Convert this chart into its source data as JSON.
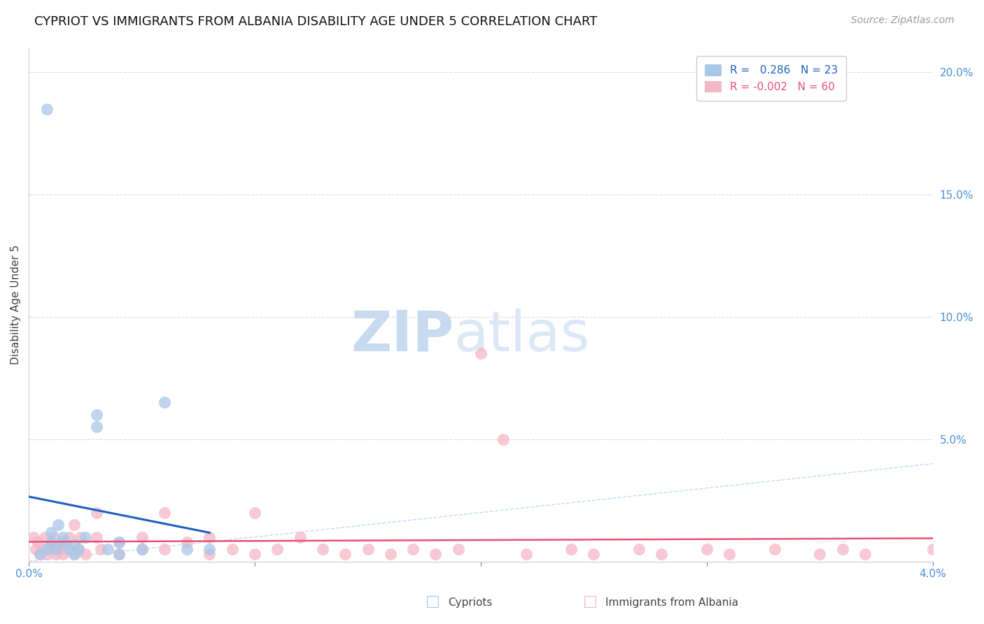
{
  "title": "CYPRIOT VS IMMIGRANTS FROM ALBANIA DISABILITY AGE UNDER 5 CORRELATION CHART",
  "source": "Source: ZipAtlas.com",
  "xlabel_label": "Cypriots",
  "xlabel2_label": "Immigrants from Albania",
  "ylabel": "Disability Age Under 5",
  "cypriot_R": 0.286,
  "cypriot_N": 23,
  "albania_R": -0.002,
  "albania_N": 60,
  "xlim": [
    0.0,
    0.04
  ],
  "ylim": [
    0.0,
    0.21
  ],
  "x_ticks": [
    0.0,
    0.01,
    0.02,
    0.03,
    0.04
  ],
  "x_tick_labels": [
    "0.0%",
    "",
    "",
    "",
    "4.0%"
  ],
  "y_ticks": [
    0.05,
    0.1,
    0.15,
    0.2
  ],
  "y_tick_labels": [
    "5.0%",
    "10.0%",
    "15.0%",
    "20.0%"
  ],
  "cypriot_color": "#a8c8e8",
  "albania_color": "#f5b8c8",
  "cypriot_line_color": "#2060c0",
  "albania_line_color": "#e8507a",
  "diagonal_color": "#b8d0f0",
  "grid_color": "#cccccc",
  "watermark_zip_color": "#c8daf0",
  "watermark_atlas_color": "#dce8f5",
  "cypriot_x": [
    0.0005,
    0.0008,
    0.001,
    0.001,
    0.0012,
    0.0013,
    0.0015,
    0.0015,
    0.0018,
    0.002,
    0.002,
    0.0022,
    0.0025,
    0.003,
    0.003,
    0.0035,
    0.004,
    0.004,
    0.005,
    0.006,
    0.007,
    0.008,
    0.0008
  ],
  "cypriot_y": [
    0.003,
    0.005,
    0.008,
    0.012,
    0.005,
    0.015,
    0.008,
    0.01,
    0.005,
    0.003,
    0.007,
    0.005,
    0.01,
    0.06,
    0.055,
    0.005,
    0.003,
    0.008,
    0.005,
    0.065,
    0.005,
    0.005,
    0.185
  ],
  "albania_x": [
    0.0002,
    0.0003,
    0.0004,
    0.0005,
    0.0006,
    0.0007,
    0.0008,
    0.0009,
    0.001,
    0.0011,
    0.0012,
    0.0013,
    0.0014,
    0.0015,
    0.0016,
    0.0017,
    0.0018,
    0.002,
    0.002,
    0.0022,
    0.0023,
    0.0025,
    0.003,
    0.003,
    0.0032,
    0.004,
    0.004,
    0.005,
    0.005,
    0.006,
    0.006,
    0.007,
    0.008,
    0.008,
    0.009,
    0.01,
    0.01,
    0.011,
    0.012,
    0.013,
    0.014,
    0.015,
    0.016,
    0.017,
    0.018,
    0.019,
    0.02,
    0.021,
    0.022,
    0.024,
    0.025,
    0.027,
    0.028,
    0.03,
    0.031,
    0.033,
    0.035,
    0.036,
    0.037,
    0.04
  ],
  "albania_y": [
    0.01,
    0.005,
    0.008,
    0.003,
    0.005,
    0.01,
    0.003,
    0.005,
    0.008,
    0.01,
    0.003,
    0.007,
    0.005,
    0.003,
    0.007,
    0.005,
    0.01,
    0.003,
    0.015,
    0.005,
    0.01,
    0.003,
    0.02,
    0.01,
    0.005,
    0.008,
    0.003,
    0.01,
    0.005,
    0.005,
    0.02,
    0.008,
    0.01,
    0.003,
    0.005,
    0.003,
    0.02,
    0.005,
    0.01,
    0.005,
    0.003,
    0.005,
    0.003,
    0.005,
    0.003,
    0.005,
    0.085,
    0.05,
    0.003,
    0.005,
    0.003,
    0.005,
    0.003,
    0.005,
    0.003,
    0.005,
    0.003,
    0.005,
    0.003,
    0.005
  ],
  "title_fontsize": 13,
  "source_fontsize": 10,
  "tick_fontsize": 11,
  "legend_fontsize": 11
}
